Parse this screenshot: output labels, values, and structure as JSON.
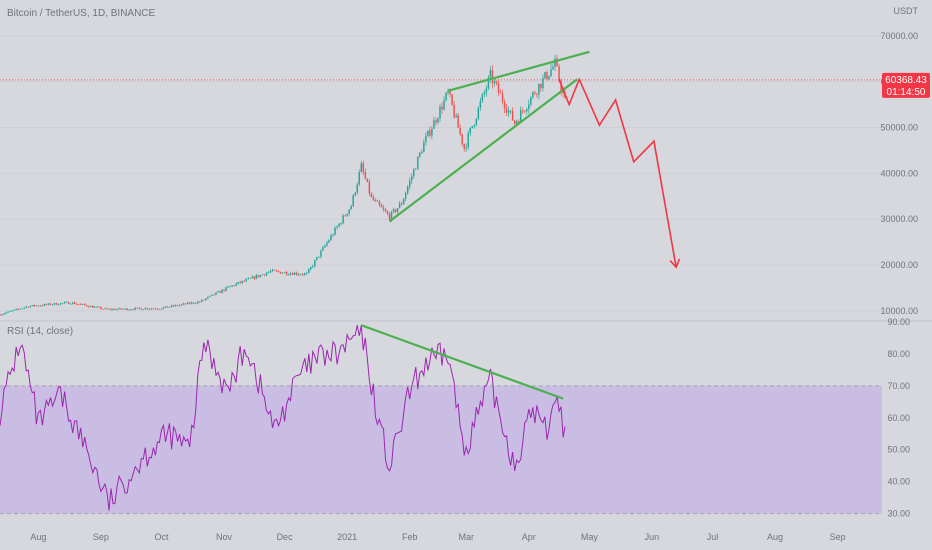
{
  "header": {
    "symbol_title": "Bitcoin / TetherUS, 1D, BINANCE",
    "currency": "USDT"
  },
  "price_badge": {
    "price": "60368.43",
    "countdown": "01:14:50",
    "value": 60368.43
  },
  "colors": {
    "background": "#d6d8de",
    "up_candle": "#26a69a",
    "down_candle": "#ef5350",
    "trendline": "#4caf50",
    "projection": "#f23645",
    "rsi_line": "#9c27b0",
    "rsi_band": "#c9bde3",
    "price_line": "#ef5350"
  },
  "chart_data": [
    {
      "type": "candlestick",
      "title": "Bitcoin / TetherUS, 1D, BINANCE",
      "y_unit": "USDT",
      "ylim": [
        8000,
        73000
      ],
      "y_ticks": [
        10000,
        20000,
        30000,
        40000,
        50000,
        60000,
        70000
      ],
      "y_tick_labels": [
        "10000.00",
        "20000.00",
        "30000.00",
        "40000.00",
        "50000.00",
        "60000.00",
        "70000.00"
      ],
      "x_ticks": [
        "Aug",
        "Sep",
        "Oct",
        "Nov",
        "Dec",
        "2021",
        "Feb",
        "Mar",
        "Apr",
        "May",
        "Jun",
        "Jul",
        "Aug",
        "Sep"
      ],
      "price_anchors": [
        [
          "2020-07-13",
          9200
        ],
        [
          "2020-07-27",
          11000
        ],
        [
          "2020-08-17",
          11800
        ],
        [
          "2020-09-04",
          10300
        ],
        [
          "2020-10-01",
          10600
        ],
        [
          "2020-10-20",
          12000
        ],
        [
          "2020-11-05",
          15500
        ],
        [
          "2020-11-24",
          18600
        ],
        [
          "2020-12-12",
          18000
        ],
        [
          "2020-12-20",
          23500
        ],
        [
          "2021-01-03",
          33000
        ],
        [
          "2021-01-08",
          41500
        ],
        [
          "2021-01-13",
          34500
        ],
        [
          "2021-01-22",
          30500
        ],
        [
          "2021-01-28",
          33500
        ],
        [
          "2021-02-08",
          46500
        ],
        [
          "2021-02-20",
          57500
        ],
        [
          "2021-02-28",
          45500
        ],
        [
          "2021-03-13",
          61200
        ],
        [
          "2021-03-25",
          51000
        ],
        [
          "2021-04-05",
          58500
        ],
        [
          "2021-04-14",
          63800
        ],
        [
          "2021-04-19",
          55500
        ]
      ],
      "series": [
        {
          "kind": "rising_wedge_upper",
          "points": [
            [
              "2021-02-20",
              58000
            ],
            [
              "2021-05-01",
              66500
            ]
          ]
        },
        {
          "kind": "rising_wedge_lower",
          "points": [
            [
              "2021-01-22",
              29500
            ],
            [
              "2021-04-25",
              60500
            ]
          ]
        },
        {
          "kind": "projection_path",
          "points": [
            [
              "2021-04-16",
              60500
            ],
            [
              "2021-04-21",
              55000
            ],
            [
              "2021-04-26",
              60500
            ],
            [
              "2021-05-06",
              50500
            ],
            [
              "2021-05-14",
              56000
            ],
            [
              "2021-05-23",
              42500
            ],
            [
              "2021-06-02",
              47000
            ],
            [
              "2021-06-13",
              19500
            ]
          ]
        }
      ],
      "current_price": 60368.43
    },
    {
      "type": "line",
      "title": "RSI (14, close)",
      "ylim": [
        28,
        90
      ],
      "y_ticks": [
        30,
        40,
        50,
        60,
        70,
        80,
        90
      ],
      "y_tick_labels": [
        "30.00",
        "40.00",
        "50.00",
        "60.00",
        "70.00",
        "80.00",
        "90.00"
      ],
      "band": [
        30,
        70
      ],
      "rsi_anchors": [
        [
          "2020-07-13",
          62
        ],
        [
          "2020-07-23",
          84
        ],
        [
          "2020-08-01",
          58
        ],
        [
          "2020-08-12",
          67
        ],
        [
          "2020-08-25",
          50
        ],
        [
          "2020-09-05",
          33
        ],
        [
          "2020-09-22",
          48
        ],
        [
          "2020-10-05",
          55
        ],
        [
          "2020-10-15",
          50
        ],
        [
          "2020-10-22",
          84
        ],
        [
          "2020-11-03",
          68
        ],
        [
          "2020-11-12",
          83
        ],
        [
          "2020-11-26",
          56
        ],
        [
          "2020-12-08",
          73
        ],
        [
          "2020-12-18",
          79
        ],
        [
          "2020-12-28",
          80
        ],
        [
          "2021-01-08",
          88
        ],
        [
          "2021-01-15",
          64
        ],
        [
          "2021-01-22",
          44
        ],
        [
          "2021-02-01",
          68
        ],
        [
          "2021-02-09",
          77
        ],
        [
          "2021-02-20",
          80
        ],
        [
          "2021-02-28",
          50
        ],
        [
          "2021-03-13",
          71
        ],
        [
          "2021-03-25",
          45
        ],
        [
          "2021-04-03",
          63
        ],
        [
          "2021-04-10",
          56
        ],
        [
          "2021-04-14",
          68
        ],
        [
          "2021-04-19",
          55
        ]
      ],
      "divergence_line": [
        [
          "2021-01-08",
          89
        ],
        [
          "2021-04-18",
          66
        ]
      ]
    }
  ]
}
